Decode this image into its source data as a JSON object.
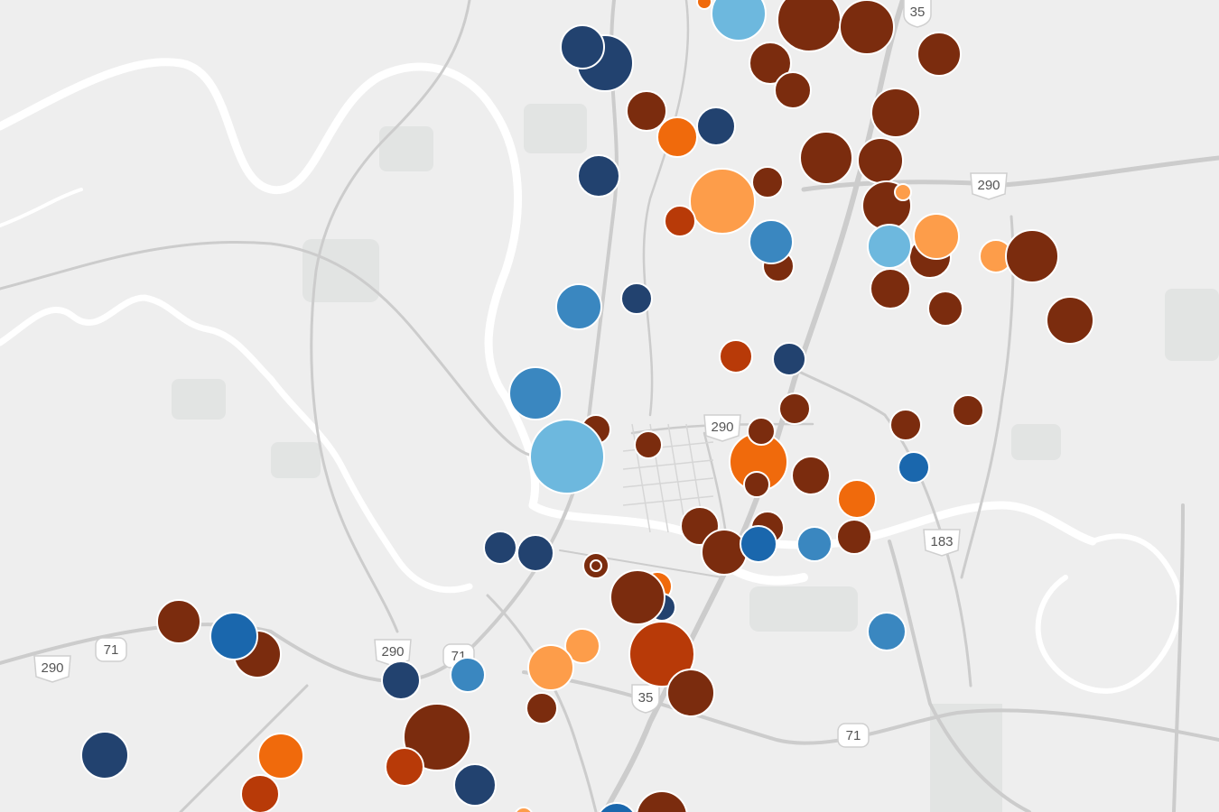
{
  "map": {
    "highway_shields": [
      {
        "id": "us-290-north",
        "label": "290"
      },
      {
        "id": "us-290-central",
        "label": "290"
      },
      {
        "id": "us-290-west",
        "label": "290"
      },
      {
        "id": "us-290-southwest",
        "label": "290"
      },
      {
        "id": "us-183",
        "label": "183"
      },
      {
        "id": "sh-71-east",
        "label": "71"
      },
      {
        "id": "sh-71-west",
        "label": "71"
      },
      {
        "id": "sh-71-south",
        "label": "71"
      },
      {
        "id": "i-35-north",
        "label": "35"
      },
      {
        "id": "i-35-south",
        "label": "35"
      }
    ],
    "colors": {
      "land": "#eeeeee",
      "water": "#ffffff",
      "park": "#e2e4e3",
      "road": "#cccccc",
      "shield_fill": "#ffffff",
      "shield_stroke": "#cfcfcf"
    },
    "marker_palette": {
      "dark_brown": "#7b2c0e",
      "rust": "#b83a08",
      "orange": "#f06a0c",
      "light_orange": "#fd9d4a",
      "navy": "#22426f",
      "blue": "#1a67ad",
      "mid_blue": "#3a87c0",
      "light_blue": "#6db8de"
    }
  }
}
